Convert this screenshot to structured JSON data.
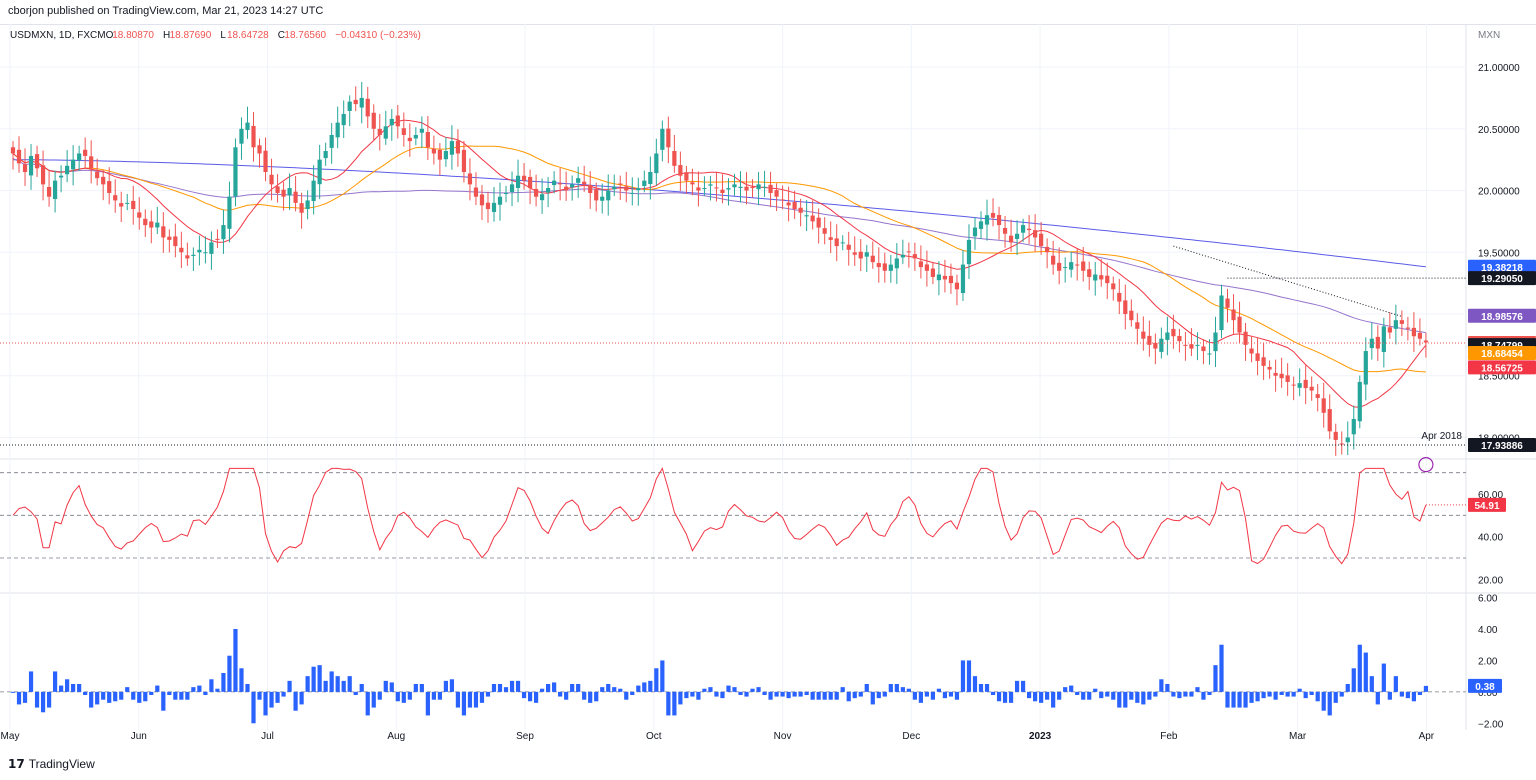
{
  "header": {
    "published": "cborjon published on TradingView.com, Mar 21, 2023 14:27 UTC"
  },
  "footer": {
    "brand": "TradingView",
    "brand_icon": "tradingview-logo-icon"
  },
  "legend": {
    "symbol": "USDMXN, 1D, FXCM",
    "o_label": "O",
    "o": "18.80870",
    "h_label": "H",
    "h": "18.87690",
    "l_label": "L",
    "l": "18.64728",
    "c_label": "C",
    "c": "18.76560",
    "change": "−0.04310 (−0.23%)"
  },
  "price_axis_currency": "MXN",
  "colors": {
    "up": "#26a69a",
    "down": "#ef5350",
    "sma20": "#f23645",
    "sma50": "#ff9800",
    "sma100": "#9575cd",
    "sma200": "#5b5be8",
    "rsi": "#f23645",
    "volume": "#2962ff"
  },
  "chart_data": [
    {
      "type": "candlestick",
      "id": "price",
      "y_ticks": [
        18.0,
        18.5,
        19.0,
        19.5,
        20.0,
        20.5,
        21.0
      ],
      "y_tick_labels": [
        "18.00000",
        "18.50000",
        "19.00000",
        "19.50000",
        "20.00000",
        "20.50000",
        "21.00000"
      ],
      "ylim": [
        17.85,
        21.3
      ],
      "x_tick_labels": [
        "May",
        "Jun",
        "Jul",
        "Aug",
        "Sep",
        "Oct",
        "Nov",
        "Dec",
        "2023",
        "Feb",
        "Mar",
        "Apr"
      ],
      "price_labels": [
        {
          "value": 19.38218,
          "text": "19.38218",
          "color": "#2962ff"
        },
        {
          "value": 19.2905,
          "text": "19.29050",
          "color": "#131722"
        },
        {
          "value": 18.98576,
          "text": "18.98576",
          "color": "#7e57c2"
        },
        {
          "value": 18.7656,
          "text": "18.76560",
          "color": "#ef5350"
        },
        {
          "value": 18.74799,
          "text": "18.74799",
          "color": "#131722"
        },
        {
          "value": 18.68454,
          "text": "18.68454",
          "color": "#ff9800"
        },
        {
          "value": 18.56725,
          "text": "18.56725",
          "color": "#f23645"
        },
        {
          "value": 17.93886,
          "text": "17.93886",
          "color": "#131722"
        }
      ],
      "annotation": "Apr 2018",
      "series_close": [
        20.3,
        20.22,
        20.15,
        20.28,
        20.18,
        20.05,
        19.95,
        20.08,
        20.12,
        20.2,
        20.25,
        20.3,
        20.28,
        20.18,
        20.1,
        20.05,
        19.98,
        19.92,
        19.87,
        19.9,
        19.85,
        19.78,
        19.72,
        19.7,
        19.74,
        19.62,
        19.6,
        19.55,
        19.5,
        19.45,
        19.48,
        19.52,
        19.5,
        19.58,
        19.6,
        19.72,
        19.95,
        20.35,
        20.5,
        20.55,
        20.35,
        20.3,
        20.15,
        20.05,
        19.98,
        19.95,
        20.02,
        19.9,
        19.82,
        19.92,
        20.08,
        20.25,
        20.32,
        20.45,
        20.55,
        20.62,
        20.72,
        20.7,
        20.75,
        20.6,
        20.5,
        20.45,
        20.52,
        20.58,
        20.52,
        20.45,
        20.4,
        20.45,
        20.5,
        20.35,
        20.3,
        20.25,
        20.32,
        20.4,
        20.3,
        20.15,
        20.05,
        19.95,
        19.88,
        19.85,
        19.9,
        19.95,
        19.98,
        20.05,
        20.12,
        20.08,
        20.02,
        19.95,
        19.97,
        20.02,
        20.08,
        20.05,
        20.0,
        20.05,
        20.1,
        20.05,
        19.98,
        19.92,
        19.95,
        20.0,
        20.03,
        20.05,
        20.0,
        19.98,
        20.02,
        20.08,
        20.15,
        20.3,
        20.5,
        20.35,
        20.2,
        20.12,
        20.08,
        20.05,
        20.0,
        20.02,
        20.05,
        20.02,
        19.98,
        20.02,
        20.05,
        20.03,
        20.0,
        20.02,
        20.05,
        20.03,
        19.98,
        19.95,
        19.92,
        19.88,
        19.85,
        19.82,
        19.8,
        19.75,
        19.7,
        19.65,
        19.6,
        19.55,
        19.58,
        19.52,
        19.48,
        19.45,
        19.5,
        19.42,
        19.38,
        19.35,
        19.4,
        19.45,
        19.48,
        19.5,
        19.45,
        19.38,
        19.35,
        19.3,
        19.32,
        19.28,
        19.25,
        19.2,
        19.4,
        19.6,
        19.7,
        19.75,
        19.8,
        19.78,
        19.72,
        19.65,
        19.58,
        19.65,
        19.72,
        19.68,
        19.62,
        19.55,
        19.5,
        19.4,
        19.35,
        19.38,
        19.42,
        19.4,
        19.35,
        19.3,
        19.32,
        19.28,
        19.25,
        19.2,
        19.1,
        19.0,
        18.95,
        18.88,
        18.8,
        18.75,
        18.72,
        18.8,
        18.85,
        18.82,
        18.78,
        18.75,
        18.72,
        18.75,
        18.7,
        18.68,
        18.85,
        19.15,
        19.05,
        18.95,
        18.85,
        18.75,
        18.68,
        18.62,
        18.58,
        18.55,
        18.5,
        18.48,
        18.45,
        18.42,
        18.44,
        18.4,
        18.38,
        18.32,
        18.2,
        18.05,
        17.98,
        17.95,
        18.0,
        18.15,
        18.45,
        18.7,
        18.8,
        18.72,
        18.9,
        18.85,
        18.95,
        18.92,
        18.88,
        18.82,
        18.8,
        18.77
      ],
      "sma": {
        "sma20": {
          "start": 19.9,
          "mid": 19.7,
          "end": 18.56725
        },
        "sma50": {
          "start": 20.1,
          "end": 18.68454
        },
        "sma100": {
          "start": 20.2,
          "end": 18.98576
        },
        "sma200": {
          "start": 20.25,
          "end": 19.38218
        }
      }
    },
    {
      "type": "line",
      "id": "rsi",
      "name": "RSI",
      "y_ticks": [
        20,
        40,
        60
      ],
      "y_tick_labels": [
        "20.00",
        "40.00",
        "60.00"
      ],
      "ylim": [
        15,
        75
      ],
      "bands": [
        30,
        50,
        70
      ],
      "last_value": 54.91,
      "last_label": "54.91"
    },
    {
      "type": "bar",
      "id": "momentum",
      "y_ticks": [
        -2,
        0,
        2,
        4,
        6
      ],
      "y_tick_labels": [
        "−2.00",
        "0.00",
        "2.00",
        "4.00",
        "6.00"
      ],
      "ylim": [
        -2.3,
        6.1
      ],
      "last_value": 0.38,
      "last_label": "0.38"
    }
  ]
}
